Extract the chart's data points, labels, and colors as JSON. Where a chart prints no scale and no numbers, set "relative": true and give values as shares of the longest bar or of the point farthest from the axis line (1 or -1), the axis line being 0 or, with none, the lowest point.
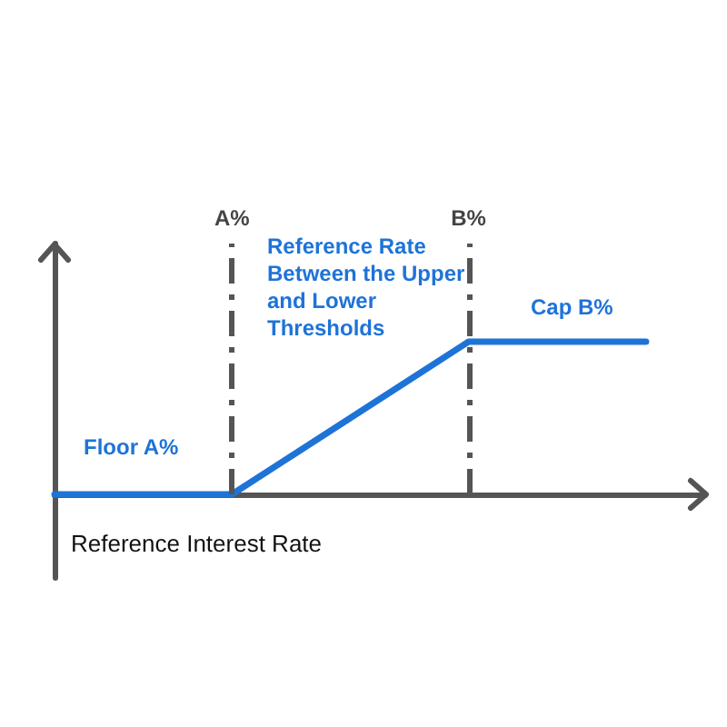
{
  "chart_data": {
    "type": "line",
    "relative": true,
    "categories": [
      null,
      null,
      null,
      "A%",
      null,
      null,
      null,
      "B%",
      null,
      null,
      null
    ],
    "series": [
      {
        "color": "#1e73d8",
        "values": [
          0,
          0,
          0,
          0,
          0.25,
          0.5,
          0.75,
          1,
          1,
          1,
          1
        ]
      }
    ],
    "xlabel": "Reference Interest Rate",
    "annotations": [
      "Floor A%",
      "Reference Rate Between the Upper and Lower Thresholds",
      "Cap B%"
    ],
    "ref_lines": [
      {
        "axis": "x",
        "value": "A%",
        "color": "#555555",
        "line_style": "dashed"
      },
      {
        "axis": "x",
        "value": "B%",
        "color": "#555555",
        "line_style": "dashed"
      }
    ],
    "marker": "none",
    "line_style": "solid"
  }
}
